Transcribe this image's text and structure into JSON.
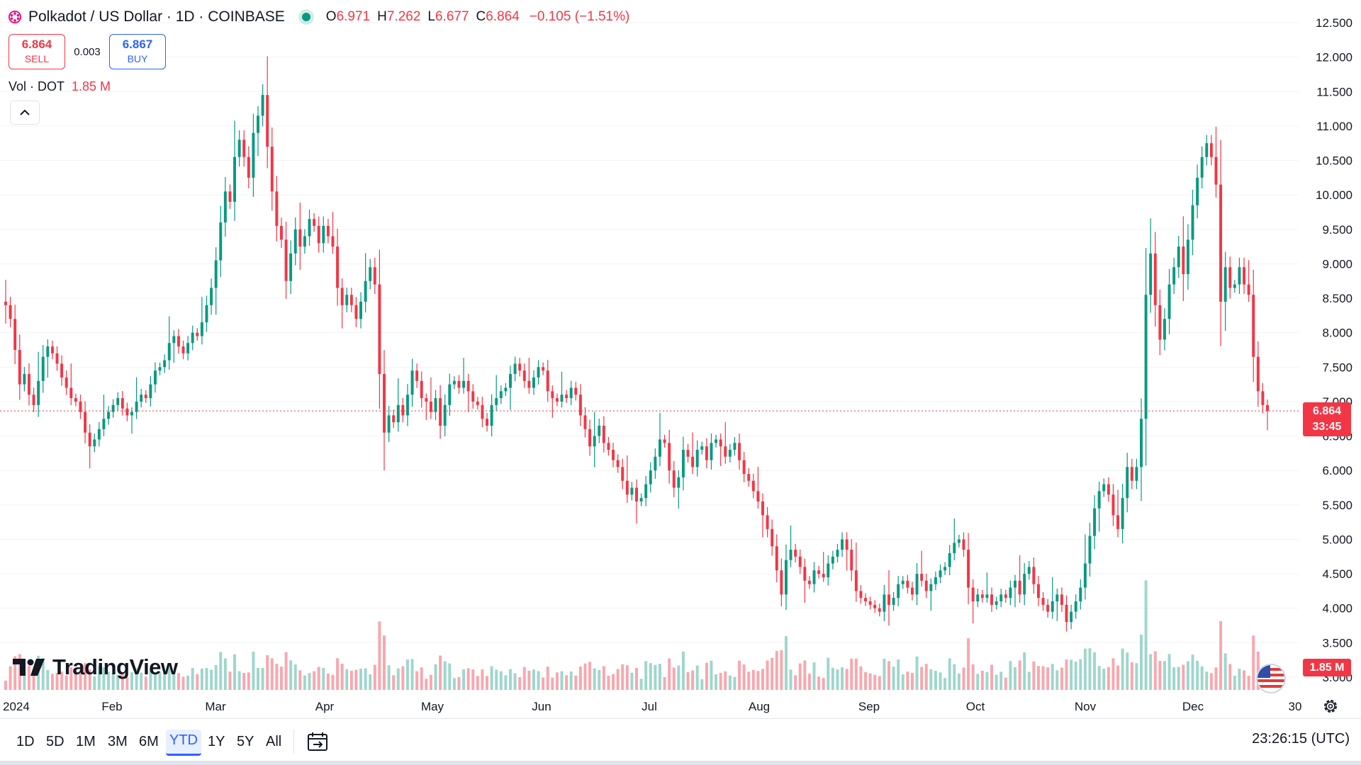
{
  "legend": {
    "title": "Polkadot / US Dollar · 1D · COINBASE",
    "ohlc": {
      "o_label": "O",
      "o": "6.971",
      "h_label": "H",
      "h": "7.262",
      "l_label": "L",
      "l": "6.677",
      "c_label": "C",
      "c": "6.864",
      "change": "−0.105 (−1.51%)"
    }
  },
  "trade": {
    "sell_price": "6.864",
    "sell_label": "SELL",
    "spread": "0.003",
    "buy_price": "6.867",
    "buy_label": "BUY"
  },
  "volume_legend": {
    "label": "Vol · DOT",
    "value": "1.85 M"
  },
  "brand": {
    "name": "TradingView"
  },
  "price_tag": {
    "price": "6.864",
    "countdown": "33:45"
  },
  "volume_tag": {
    "value": "1.85 M"
  },
  "bottom": {
    "ranges": [
      "1D",
      "5D",
      "1M",
      "3M",
      "6M",
      "YTD",
      "1Y",
      "5Y",
      "All"
    ],
    "active_range": "YTD",
    "clock": "23:26:15 (UTC)"
  },
  "colors": {
    "up": "#089981",
    "down": "#F23645",
    "up_vol": "#9fd6cc",
    "down_vol": "#f8a7ae",
    "accent": "#2962FF"
  },
  "icons": {
    "symbol": "polkadot-logo-icon",
    "live": "market-open-dot-icon",
    "collapse": "chevron-up-icon",
    "calendar": "calendar-icon",
    "settings": "gear-icon",
    "flag": "us-flag-icon"
  },
  "chart_data": {
    "type": "candlestick",
    "y_axis": {
      "ticks": [
        "3.000",
        "3.500",
        "4.000",
        "4.500",
        "5.000",
        "5.500",
        "6.000",
        "6.500",
        "7.000",
        "7.500",
        "8.000",
        "8.500",
        "9.000",
        "9.500",
        "10.000",
        "10.500",
        "11.000",
        "11.500",
        "12.000",
        "12.500"
      ],
      "range": [
        3.0,
        12.6
      ]
    },
    "x_axis": {
      "ticks": [
        "2024",
        "Feb",
        "Mar",
        "Apr",
        "May",
        "Jun",
        "Jul",
        "Aug",
        "Sep",
        "Oct",
        "Nov",
        "Dec",
        "30"
      ]
    },
    "last_price": 6.864,
    "series": [
      {
        "name": "DOTUSD",
        "closes": [
          8.4,
          8.2,
          7.75,
          7.25,
          7.4,
          7.1,
          6.95,
          7.3,
          7.65,
          7.8,
          7.7,
          7.55,
          7.35,
          7.2,
          7.05,
          7.0,
          6.85,
          6.55,
          6.35,
          6.45,
          6.6,
          6.75,
          6.85,
          6.95,
          7.05,
          6.9,
          6.8,
          6.85,
          7.0,
          7.1,
          7.05,
          7.25,
          7.45,
          7.5,
          7.6,
          7.85,
          7.95,
          7.8,
          7.7,
          7.85,
          8.0,
          7.95,
          8.15,
          8.4,
          8.65,
          9.05,
          9.6,
          10.05,
          9.9,
          10.55,
          10.8,
          10.55,
          10.25,
          10.9,
          11.15,
          11.45,
          10.7,
          10.05,
          9.55,
          9.35,
          8.75,
          9.15,
          9.5,
          9.25,
          9.4,
          9.65,
          9.55,
          9.3,
          9.55,
          9.4,
          9.25,
          8.65,
          8.4,
          8.55,
          8.4,
          8.2,
          8.45,
          8.75,
          8.95,
          8.7,
          7.4,
          6.55,
          6.8,
          6.7,
          6.95,
          6.8,
          7.1,
          7.45,
          7.3,
          7.05,
          7.0,
          6.85,
          7.05,
          6.65,
          6.95,
          7.25,
          7.3,
          7.2,
          7.3,
          7.15,
          7.0,
          6.95,
          6.75,
          6.65,
          6.95,
          7.05,
          7.15,
          7.2,
          7.4,
          7.55,
          7.45,
          7.3,
          7.2,
          7.35,
          7.5,
          7.45,
          7.15,
          7.05,
          7.0,
          7.1,
          7.05,
          7.2,
          7.1,
          6.8,
          6.6,
          6.35,
          6.5,
          6.65,
          6.4,
          6.3,
          6.15,
          6.05,
          5.85,
          5.65,
          5.75,
          5.55,
          5.6,
          5.8,
          6.0,
          6.2,
          6.45,
          6.4,
          6.0,
          5.75,
          5.9,
          6.3,
          6.2,
          6.05,
          6.3,
          6.35,
          6.15,
          6.4,
          6.45,
          6.35,
          6.2,
          6.3,
          6.4,
          6.15,
          5.95,
          5.85,
          5.7,
          5.55,
          5.35,
          5.15,
          4.9,
          4.55,
          4.2,
          4.7,
          4.85,
          4.75,
          4.6,
          4.4,
          4.35,
          4.55,
          4.5,
          4.45,
          4.65,
          4.75,
          4.85,
          5.0,
          4.85,
          4.55,
          4.25,
          4.15,
          4.1,
          4.05,
          4.0,
          3.95,
          4.2,
          4.05,
          4.15,
          4.35,
          4.4,
          4.3,
          4.2,
          4.5,
          4.4,
          4.25,
          4.35,
          4.45,
          4.55,
          4.6,
          4.8,
          4.95,
          5.0,
          4.85,
          4.3,
          4.1,
          4.2,
          4.15,
          4.2,
          4.05,
          4.1,
          4.2,
          4.15,
          4.3,
          4.4,
          4.2,
          4.5,
          4.6,
          4.35,
          4.15,
          4.05,
          3.95,
          4.1,
          4.2,
          4.05,
          3.8,
          3.95,
          4.1,
          4.3,
          4.65,
          5.05,
          5.45,
          5.7,
          5.8,
          5.65,
          5.35,
          5.15,
          5.6,
          6.05,
          5.85,
          6.05,
          6.75,
          8.55,
          9.15,
          8.4,
          7.9,
          8.2,
          8.7,
          8.95,
          9.25,
          8.85,
          9.35,
          9.85,
          10.25,
          10.55,
          10.75,
          10.55,
          10.15,
          8.45,
          8.95,
          8.65,
          8.7,
          8.95,
          8.7,
          8.55,
          7.65,
          7.15,
          6.95,
          6.864
        ]
      }
    ]
  }
}
